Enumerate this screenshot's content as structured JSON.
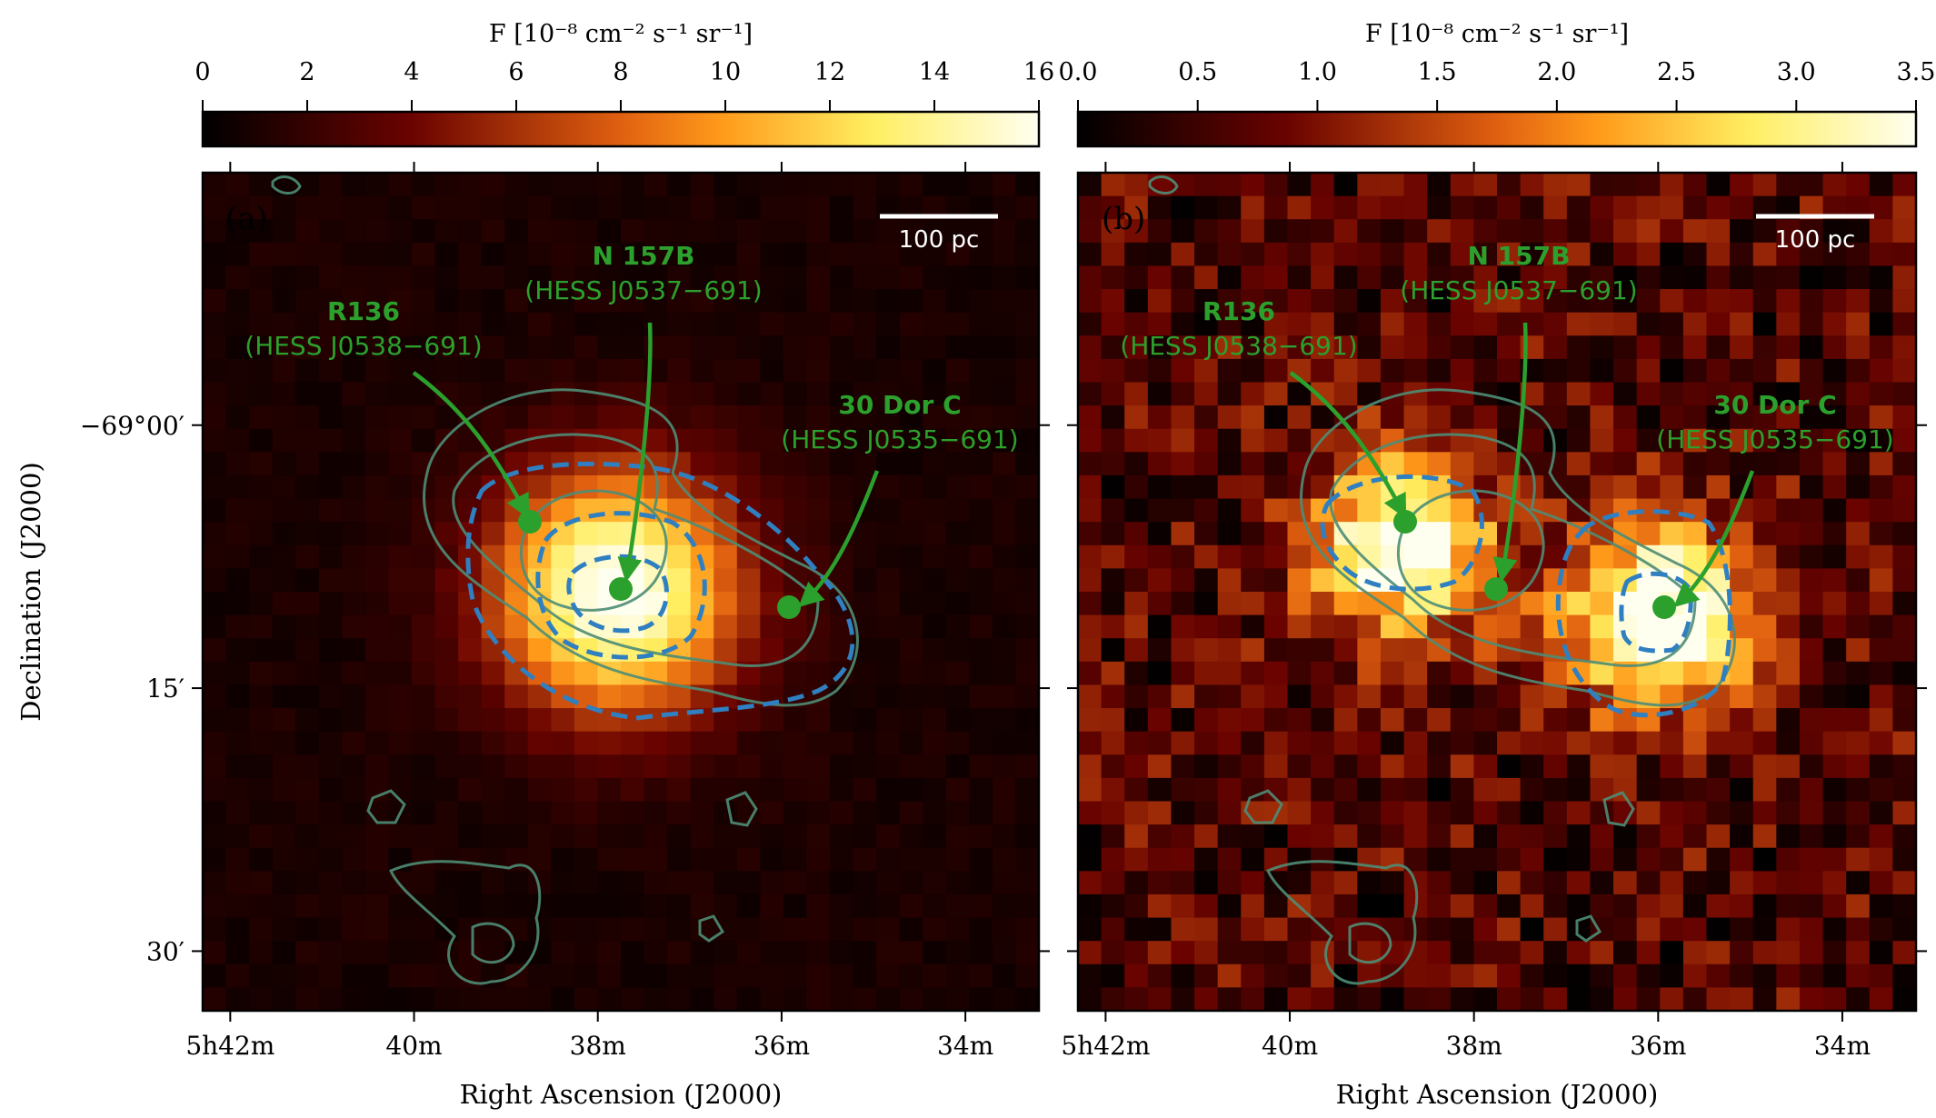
{
  "chart_data": [
    {
      "type": "heatmap",
      "panel_label": "(a)",
      "colorbar": {
        "label": "F [10⁻⁸ cm⁻² s⁻¹ sr⁻¹]",
        "min": 0,
        "max": 16,
        "ticks": [
          0,
          2,
          4,
          6,
          8,
          10,
          12,
          14,
          16
        ],
        "tick_labels": [
          "0",
          "2",
          "4",
          "6",
          "8",
          "10",
          "12",
          "14",
          "16"
        ],
        "colormap": "afmhot"
      },
      "scale_bar": "100 pc",
      "xlabel": "Right Ascension (J2000)",
      "ylabel": "Declination (J2000)",
      "x_ticks": [
        "5h42m",
        "40m",
        "38m",
        "36m",
        "34m"
      ],
      "y_ticks": [
        "−69°00′",
        "15′",
        "30′"
      ],
      "sources": [
        {
          "name": "R136",
          "id": "(HESS J0538−691)",
          "ra_min": 38.8,
          "dec_arcmin": 5.7
        },
        {
          "name": "N 157B",
          "id": "(HESS J0537−691)",
          "ra_min": 37.8,
          "dec_arcmin": 9.5
        },
        {
          "name": "30 Dor C",
          "id": "(HESS J0535−691)",
          "ra_min": 36.0,
          "dec_arcmin": 10.6
        }
      ],
      "emission_peaks": [
        {
          "ra_min": 37.8,
          "dec_arcmin": 9.5,
          "flux": 16
        }
      ]
    },
    {
      "type": "heatmap",
      "panel_label": "(b)",
      "colorbar": {
        "label": "F [10⁻⁸ cm⁻² s⁻¹ sr⁻¹]",
        "min": 0,
        "max": 3.5,
        "ticks": [
          0,
          0.5,
          1.0,
          1.5,
          2.0,
          2.5,
          3.0,
          3.5
        ],
        "tick_labels": [
          "0.0",
          "0.5",
          "1.0",
          "1.5",
          "2.0",
          "2.5",
          "3.0",
          "3.5"
        ],
        "colormap": "afmhot"
      },
      "scale_bar": "100 pc",
      "xlabel": "Right Ascension (J2000)",
      "x_ticks": [
        "5h42m",
        "40m",
        "38m",
        "36m",
        "34m"
      ],
      "sources": [
        {
          "name": "R136",
          "id": "(HESS J0538−691)",
          "ra_min": 38.8,
          "dec_arcmin": 5.7
        },
        {
          "name": "N 157B",
          "id": "(HESS J0537−691)",
          "ra_min": 37.8,
          "dec_arcmin": 9.5
        },
        {
          "name": "30 Dor C",
          "id": "(HESS J0535−691)",
          "ra_min": 36.0,
          "dec_arcmin": 10.6
        }
      ],
      "emission_peaks": [
        {
          "ra_min": 38.8,
          "dec_arcmin": 7.0,
          "flux": 3.0
        },
        {
          "ra_min": 36.0,
          "dec_arcmin": 11.0,
          "flux": 3.5
        }
      ]
    }
  ],
  "colors": {
    "source_green": "#2ca02c",
    "contour_grey_green": "#4e8d76",
    "dashed_blue": "#2f7fc1",
    "scale_bar": "#ffffff"
  }
}
